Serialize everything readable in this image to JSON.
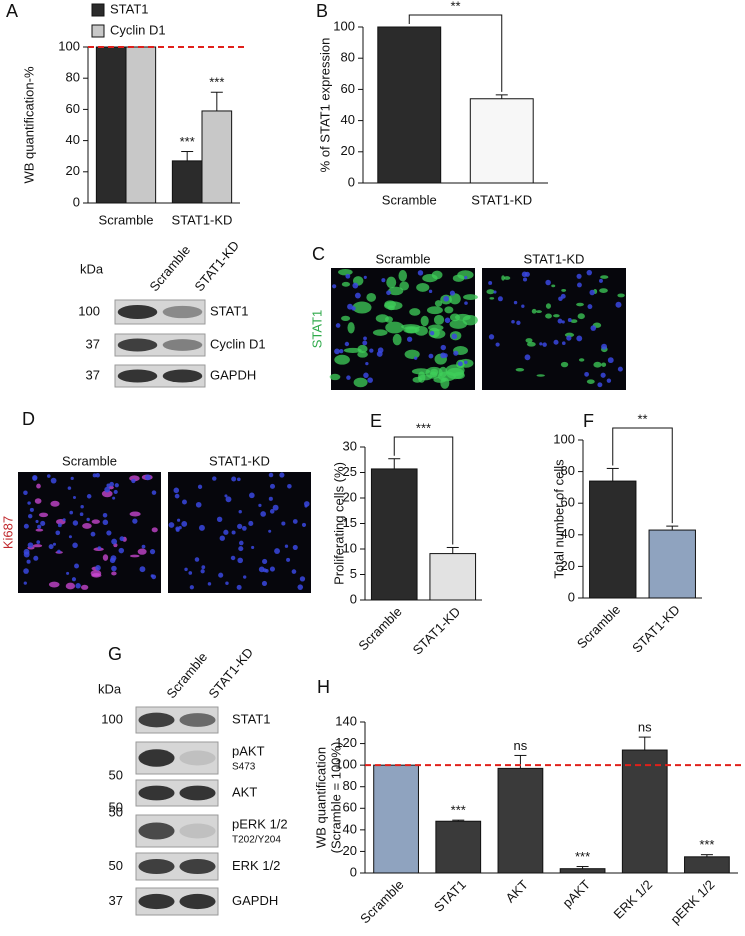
{
  "chart_data": [
    {
      "type": "bar",
      "panel": "A",
      "ylabel": "WB quantification-%",
      "categories": [
        "Scramble",
        "STAT1-KD"
      ],
      "series": [
        {
          "name": "STAT1",
          "color": "#2b2b2b",
          "values": [
            100,
            27
          ],
          "errors": [
            null,
            6
          ],
          "annotations": [
            null,
            "***"
          ]
        },
        {
          "name": "Cyclin D1",
          "color": "#c8c8c8",
          "values": [
            100,
            59
          ],
          "errors": [
            null,
            12
          ],
          "annotations": [
            null,
            "***"
          ]
        }
      ],
      "ylim": [
        0,
        100
      ],
      "yticks": [
        0,
        20,
        40,
        60,
        80,
        100
      ],
      "reference_line": {
        "value": 100,
        "color": "#e0201b"
      }
    },
    {
      "type": "bar",
      "panel": "B",
      "ylabel": "% of STAT1 expression",
      "categories": [
        "Scramble",
        "STAT1-KD"
      ],
      "values": [
        100,
        54
      ],
      "errors": [
        null,
        2.5
      ],
      "colors": [
        "#2b2b2b",
        "#f7f7f7"
      ],
      "ylim": [
        0,
        100
      ],
      "yticks": [
        0,
        20,
        40,
        60,
        80,
        100
      ],
      "comparison": "**"
    },
    {
      "type": "bar",
      "panel": "E",
      "ylabel": "Proliferating cells (%)",
      "categories": [
        "Scramble",
        "STAT1-KD"
      ],
      "values": [
        25.7,
        9.1
      ],
      "errors": [
        2,
        1.2
      ],
      "colors": [
        "#2b2b2b",
        "#e2e2e2"
      ],
      "ylim": [
        0,
        30
      ],
      "yticks": [
        0,
        5,
        10,
        15,
        20,
        25,
        30
      ],
      "comparison": "***"
    },
    {
      "type": "bar",
      "panel": "F",
      "ylabel": "Total number of cells",
      "categories": [
        "Scramble",
        "STAT1-KD"
      ],
      "values": [
        74,
        43
      ],
      "errors": [
        8,
        2.5
      ],
      "colors": [
        "#2b2b2b",
        "#8fa3bf"
      ],
      "ylim": [
        0,
        100
      ],
      "yticks": [
        0,
        20,
        40,
        60,
        80,
        100
      ],
      "comparison": "**"
    },
    {
      "type": "bar",
      "panel": "H",
      "ylabel": [
        "WB quantification",
        "(Scramble = 100%)"
      ],
      "categories": [
        "Scramble",
        "STAT1",
        "AKT",
        "pAKT",
        "ERK 1/2",
        "pERK 1/2"
      ],
      "values": [
        100,
        48,
        97,
        4,
        114,
        15
      ],
      "errors": [
        null,
        1,
        12,
        2,
        12,
        2
      ],
      "annotations": [
        null,
        "***",
        "ns",
        "***",
        "ns",
        "***"
      ],
      "colors": [
        "#8fa3bf",
        "#3a3a3a",
        "#3a3a3a",
        "#3a3a3a",
        "#3a3a3a",
        "#3a3a3a"
      ],
      "ylim": [
        0,
        140
      ],
      "yticks": [
        0,
        20,
        40,
        60,
        80,
        100,
        120,
        140
      ],
      "reference_line": {
        "value": 100,
        "color": "#e0201b"
      }
    }
  ],
  "blots": [
    {
      "kda_label": "kDa",
      "lanes": [
        "Scramble",
        "STAT1-KD"
      ],
      "rows": [
        {
          "marker": "100",
          "name": "STAT1"
        },
        {
          "marker": "37",
          "name": "Cyclin D1"
        },
        {
          "marker": "37",
          "name": "GAPDH"
        }
      ]
    },
    {
      "panel": "G",
      "kda_label": "kDa",
      "lanes": [
        "Scramble",
        "STAT1-KD"
      ],
      "rows": [
        {
          "marker": "100",
          "name": "STAT1"
        },
        {
          "marker": "50",
          "name": "pAKT",
          "sub": "S473"
        },
        {
          "marker": "50",
          "name": "AKT"
        },
        {
          "marker": "50",
          "name": "pERK 1/2",
          "sub": "T202/Y204"
        },
        {
          "marker": "50",
          "name": "ERK 1/2"
        },
        {
          "marker": "37",
          "name": "GAPDH"
        }
      ]
    }
  ],
  "images": [
    {
      "panel": "C",
      "stain": "STAT1",
      "labels": [
        "Scramble",
        "STAT1-KD"
      ]
    },
    {
      "panel": "D",
      "stain": "Ki687",
      "labels": [
        "Scramble",
        "STAT1-KD"
      ]
    }
  ]
}
